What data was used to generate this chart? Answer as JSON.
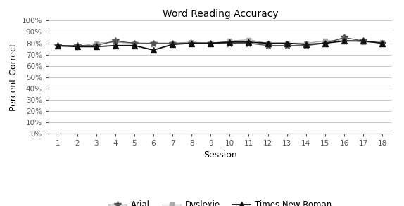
{
  "title": "Word Reading Accuracy",
  "xlabel": "Session",
  "ylabel": "Percent Correct",
  "sessions": [
    1,
    2,
    3,
    4,
    5,
    6,
    7,
    8,
    9,
    10,
    11,
    12,
    13,
    14,
    15,
    16,
    17,
    18
  ],
  "arial": [
    0.78,
    0.78,
    0.78,
    0.82,
    0.8,
    0.8,
    0.8,
    0.8,
    0.8,
    0.8,
    0.8,
    0.78,
    0.78,
    0.78,
    0.8,
    0.85,
    0.82,
    0.8
  ],
  "dyslexie": [
    0.77,
    0.77,
    0.8,
    0.81,
    0.8,
    0.8,
    0.8,
    0.81,
    0.8,
    0.82,
    0.83,
    0.8,
    0.8,
    0.8,
    0.82,
    0.83,
    0.81,
    0.81
  ],
  "tnr": [
    0.78,
    0.77,
    0.77,
    0.78,
    0.78,
    0.74,
    0.79,
    0.8,
    0.8,
    0.81,
    0.81,
    0.8,
    0.8,
    0.79,
    0.8,
    0.82,
    0.82,
    0.8
  ],
  "arial_color": "#555555",
  "dyslexie_color": "#aaaaaa",
  "tnr_color": "#111111",
  "background_color": "#ffffff",
  "ylim": [
    0.0,
    1.0
  ],
  "yticks": [
    0.0,
    0.1,
    0.2,
    0.3,
    0.4,
    0.5,
    0.6,
    0.7,
    0.8,
    0.9,
    1.0
  ],
  "grid_color": "#cccccc",
  "title_fontsize": 10,
  "axis_label_fontsize": 9,
  "tick_fontsize": 7.5,
  "legend_fontsize": 8.5
}
